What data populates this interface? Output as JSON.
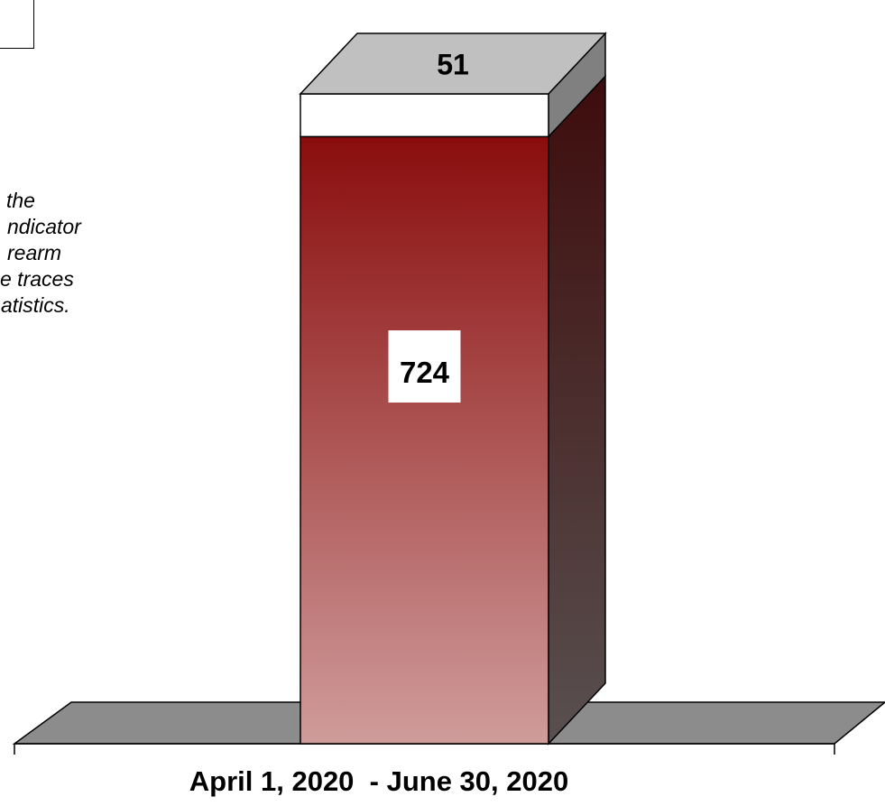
{
  "note": {
    "lines": [
      "the",
      "ndicator",
      "rearm",
      "e traces",
      "atistics."
    ]
  },
  "colors": {
    "bottom_top": "#8a0d0d",
    "bottom_bottom": "#cf9c9b",
    "side_top": "#3e0c0c",
    "side_bottom": "#595050",
    "top_segment": "#ffffff",
    "cap": "#c0c0c0",
    "cap_side": "#808080",
    "floor": "#8c8c8c"
  },
  "chart_data": {
    "type": "bar",
    "stacked": true,
    "categories": [
      "April 1, 2020  - June 30, 2020"
    ],
    "series": [
      {
        "values": [
          724
        ]
      },
      {
        "values": [
          51
        ]
      }
    ],
    "data_labels": [
      "724",
      "51"
    ],
    "xlabel": "April 1, 2020  - June 30, 2020",
    "grid": false,
    "three_d": true
  }
}
